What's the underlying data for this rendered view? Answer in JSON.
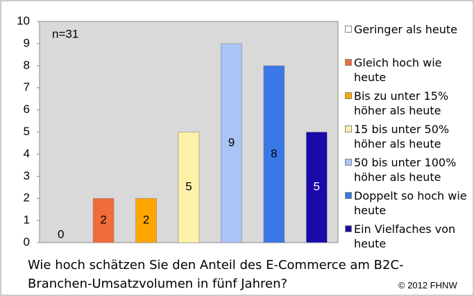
{
  "chart_data": {
    "type": "bar",
    "xlabel": "Wie hoch schätzen Sie den Anteil des E-Commerce am B2C-Branchen-Umsatzvolumen in fünf Jahren?",
    "annotations": [
      "n=31",
      "© 2012 FHNW"
    ],
    "categories": [
      "Geringer als heute",
      "Gleich hoch wie heute",
      "Bis zu unter 15% höher als heute",
      "15 bis unter 50% höher als heute",
      "50 bis unter 100% höher als heute",
      "Doppelt so hoch wie heute",
      "Ein Vielfaches von heute"
    ],
    "values": [
      0,
      2,
      2,
      5,
      9,
      8,
      5
    ],
    "colors": [
      "#ffffff",
      "#f26b3a",
      "#ffa500",
      "#fff2a8",
      "#a9c4f5",
      "#3a78e8",
      "#1a0aa8"
    ],
    "ylim": [
      0,
      10
    ],
    "yticks": [
      0,
      1,
      2,
      3,
      4,
      5,
      6,
      7,
      8,
      9,
      10
    ],
    "grid": false,
    "legend": "right"
  }
}
